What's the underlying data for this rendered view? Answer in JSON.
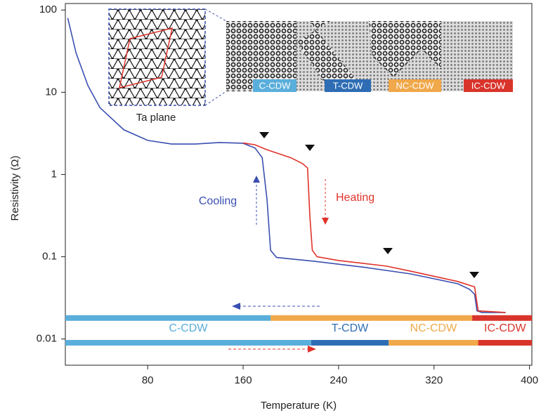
{
  "chart_data": {
    "type": "line",
    "xlabel": "Temperature (K)",
    "ylabel": "Resistivity (Ω)",
    "xlim": [
      11,
      402
    ],
    "xticks": [
      80,
      160,
      240,
      320,
      400
    ],
    "ylim": [
      0.0048,
      120
    ],
    "yticks": [
      0.01,
      0.1,
      1,
      10,
      100
    ],
    "yscale": "log",
    "series": [
      {
        "name": "Cooling",
        "color": "#3a4fb0",
        "x": [
          13,
          20,
          30,
          40,
          60,
          80,
          100,
          120,
          140,
          160,
          170,
          176,
          180,
          183,
          188,
          220,
          260,
          300,
          340,
          350,
          354,
          356,
          360,
          380
        ],
        "values": [
          80,
          30,
          12,
          6.5,
          3.5,
          2.6,
          2.35,
          2.35,
          2.45,
          2.4,
          2.1,
          1.6,
          0.5,
          0.12,
          0.098,
          0.088,
          0.075,
          0.062,
          0.047,
          0.04,
          0.035,
          0.022,
          0.021,
          0.021
        ]
      },
      {
        "name": "Heating",
        "color": "#e0322a",
        "x": [
          160,
          170,
          180,
          200,
          210,
          214,
          216,
          218,
          222,
          240,
          280,
          300,
          340,
          354,
          357,
          380
        ],
        "values": [
          2.42,
          2.3,
          2.0,
          1.6,
          1.35,
          1.2,
          0.3,
          0.12,
          0.1,
          0.09,
          0.077,
          0.067,
          0.05,
          0.043,
          0.022,
          0.021
        ]
      }
    ],
    "phase_bars": [
      {
        "segments": [
          {
            "label": "C-CDW",
            "start": 11,
            "end": 183,
            "color": "#5aaedb"
          },
          {
            "label": "NC-CDW",
            "start": 183,
            "end": 352,
            "color": "#f0a84a"
          },
          {
            "label": "IC-CDW",
            "start": 352,
            "end": 402,
            "color": "#d9342b"
          }
        ]
      },
      {
        "segments": [
          {
            "label": "C-CDW",
            "start": 11,
            "end": 217,
            "color": "#5aaedb"
          },
          {
            "label": "T-CDW",
            "start": 217,
            "end": 282,
            "color": "#2e6db4"
          },
          {
            "label": "NC-CDW",
            "start": 282,
            "end": 357,
            "color": "#f0a84a"
          },
          {
            "label": "IC-CDW",
            "start": 357,
            "end": 402,
            "color": "#d9342b"
          }
        ]
      }
    ],
    "inset": {
      "caption": "Ta plane",
      "phases": [
        "C-CDW",
        "T-CDW",
        "NC-CDW",
        "IC-CDW"
      ]
    }
  }
}
